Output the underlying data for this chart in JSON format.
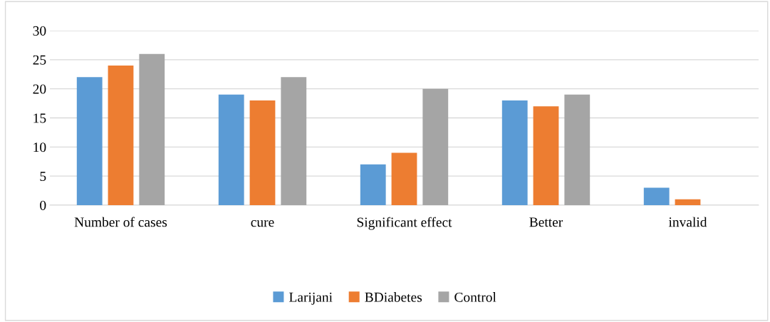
{
  "chart_data": {
    "type": "bar",
    "categories": [
      "Number of cases",
      "cure",
      "Significant effect",
      "Better",
      "invalid"
    ],
    "series": [
      {
        "name": "Larijani",
        "color": "#5b9bd5",
        "values": [
          22,
          19,
          7,
          18,
          3
        ]
      },
      {
        "name": "BDiabetes",
        "color": "#ed7d31",
        "values": [
          24,
          18,
          9,
          17,
          1
        ]
      },
      {
        "name": "Control",
        "color": "#a5a5a5",
        "values": [
          26,
          22,
          20,
          19,
          0
        ]
      }
    ],
    "ylim": [
      0,
      30
    ],
    "yticks": [
      0,
      5,
      10,
      15,
      20,
      25,
      30
    ],
    "grid": "y",
    "legend": "bottom"
  }
}
